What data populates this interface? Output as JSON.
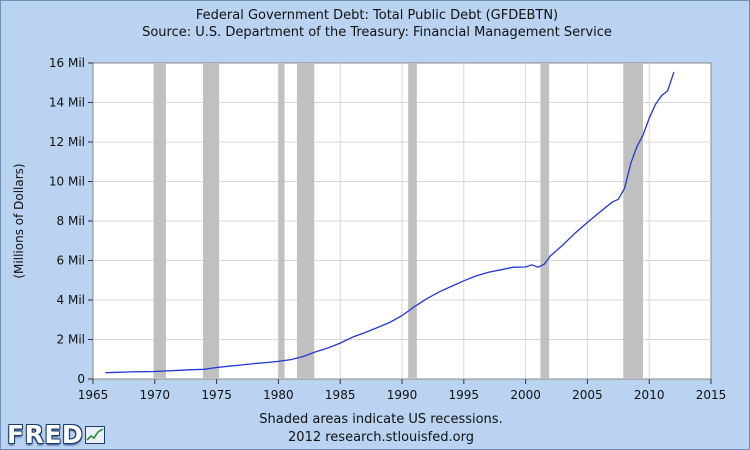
{
  "colors": {
    "background": "#b9d3f1",
    "plot_background": "#ffffff",
    "recession_shade": "#c0c0c0",
    "line": "#2436d6",
    "grid": "#d8d8d8"
  },
  "logo": {
    "text": "FRED",
    "icon": "mini-chart-icon"
  },
  "chart_data": {
    "type": "line",
    "title": "Federal Government Debt: Total Public Debt (GFDEBTN)",
    "subtitle": "Source: U.S. Department of the Treasury: Financial Management Service",
    "ylabel": "(Millions of Dollars)",
    "xlabel": "",
    "xlim": [
      1965,
      2015
    ],
    "ylim": [
      0,
      16
    ],
    "x_ticks": [
      1965,
      1970,
      1975,
      1980,
      1985,
      1990,
      1995,
      2000,
      2005,
      2010,
      2015
    ],
    "x_tick_labels": [
      "1965",
      "1970",
      "1975",
      "1980",
      "1985",
      "1990",
      "1995",
      "2000",
      "2005",
      "2010",
      "2015"
    ],
    "y_ticks": [
      0,
      2,
      4,
      6,
      8,
      10,
      12,
      14,
      16
    ],
    "y_tick_labels": [
      "0",
      "2 Mil",
      "4 Mil",
      "6 Mil",
      "8 Mil",
      "10 Mil",
      "12 Mil",
      "14 Mil",
      "16 Mil"
    ],
    "grid": true,
    "recessions": [
      [
        1969.9,
        1970.9
      ],
      [
        1973.9,
        1975.2
      ],
      [
        1980.0,
        1980.5
      ],
      [
        1981.5,
        1982.9
      ],
      [
        1990.5,
        1991.2
      ],
      [
        2001.2,
        2001.9
      ],
      [
        2007.9,
        2009.5
      ]
    ],
    "footnote": "Shaded areas indicate US recessions.",
    "source_line": "2012 research.stlouisfed.org",
    "series": [
      {
        "name": "GFDEBTN",
        "x": [
          1966.0,
          1967.0,
          1968.0,
          1969.0,
          1970.0,
          1971.0,
          1972.0,
          1973.0,
          1974.0,
          1975.0,
          1976.0,
          1977.0,
          1978.0,
          1979.0,
          1980.0,
          1981.0,
          1982.0,
          1983.0,
          1984.0,
          1985.0,
          1986.0,
          1987.0,
          1988.0,
          1989.0,
          1990.0,
          1991.0,
          1992.0,
          1993.0,
          1994.0,
          1995.0,
          1996.0,
          1997.0,
          1998.0,
          1999.0,
          2000.0,
          2000.5,
          2001.0,
          2001.5,
          2002.0,
          2003.0,
          2004.0,
          2005.0,
          2006.0,
          2007.0,
          2007.5,
          2008.0,
          2008.5,
          2009.0,
          2009.5,
          2010.0,
          2010.5,
          2011.0,
          2011.5,
          2012.0
        ],
        "values": [
          0.32,
          0.34,
          0.36,
          0.37,
          0.38,
          0.41,
          0.44,
          0.47,
          0.49,
          0.58,
          0.65,
          0.71,
          0.78,
          0.83,
          0.89,
          0.98,
          1.14,
          1.37,
          1.57,
          1.82,
          2.12,
          2.35,
          2.6,
          2.86,
          3.21,
          3.66,
          4.06,
          4.41,
          4.69,
          4.97,
          5.22,
          5.41,
          5.53,
          5.66,
          5.67,
          5.78,
          5.66,
          5.81,
          6.23,
          6.78,
          7.38,
          7.93,
          8.45,
          8.95,
          9.1,
          9.65,
          10.9,
          11.75,
          12.35,
          13.2,
          13.9,
          14.35,
          14.6,
          15.55
        ]
      }
    ]
  }
}
